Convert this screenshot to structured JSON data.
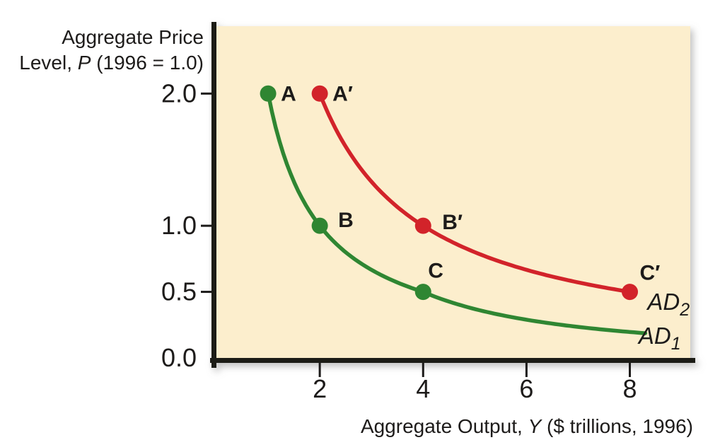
{
  "figure": {
    "background": "#ffffff",
    "plot_background": "#fceecd",
    "axis_color": "#1c1a19",
    "text_color": "#1d1b1a"
  },
  "chart_data": {
    "type": "line",
    "title": "",
    "xlabel": "Aggregate Output, Y ($ trillions, 1996)",
    "ylabel": "Aggregate Price Level, P (1996 = 1.0)",
    "xlabel_segments": [
      {
        "t": "Aggregate Output, "
      },
      {
        "t": "Y",
        "italic": true
      },
      {
        "t": " ($ trillions, 1996)"
      }
    ],
    "ylabel_lines": [
      [
        {
          "t": "Aggregate Price"
        }
      ],
      [
        {
          "t": "Level, "
        },
        {
          "t": "P",
          "italic": true
        },
        {
          "t": " (1996 = 1.0)"
        }
      ]
    ],
    "xlim": [
      0,
      9.17
    ],
    "ylim": [
      0,
      2.51
    ],
    "grid": false,
    "legend_position": "curve-end-labels",
    "x_ticks": [
      {
        "value": 2,
        "label": "2"
      },
      {
        "value": 4,
        "label": "4"
      },
      {
        "value": 6,
        "label": "6"
      },
      {
        "value": 8,
        "label": "8"
      }
    ],
    "y_ticks": [
      {
        "value": 2.0,
        "label": "2.0",
        "tick": true
      },
      {
        "value": 1.0,
        "label": "1.0",
        "tick": true
      },
      {
        "value": 0.5,
        "label": "0.5",
        "tick": true
      },
      {
        "value": 0.0,
        "label": "0.0",
        "tick": false
      }
    ],
    "series": [
      {
        "id": "ad1",
        "label_main": "AD",
        "label_sub": "1",
        "color": "#2f8632",
        "curve": "hyperbola",
        "k": 2,
        "x_start": 1.0,
        "x_end": 8.3,
        "tail": {
          "from_x": 4.0,
          "exponent": 1.35
        },
        "label_at": {
          "x": 8.17,
          "y": 0.107
        },
        "points": [
          {
            "label": "A",
            "x": 1.0,
            "y": 2.0
          },
          {
            "label": "B",
            "x": 2.0,
            "y": 1.0
          },
          {
            "label": "C",
            "x": 4.0,
            "y": 0.5
          }
        ]
      },
      {
        "id": "ad2",
        "label_main": "AD",
        "label_sub": "2",
        "color": "#d2232a",
        "curve": "hyperbola",
        "k": 4,
        "x_start": 2.0,
        "x_end": 8.0,
        "tail": null,
        "label_at": {
          "x": 8.34,
          "y": 0.364
        },
        "points": [
          {
            "label": "A′",
            "x": 2.0,
            "y": 2.0
          },
          {
            "label": "B′",
            "x": 4.0,
            "y": 1.0
          },
          {
            "label": "C′",
            "x": 8.0,
            "y": 0.5
          }
        ]
      }
    ],
    "point_label_offsets": {
      "A": [
        18,
        10
      ],
      "A′": [
        18,
        10
      ],
      "B": [
        26,
        2
      ],
      "B′": [
        27,
        5
      ],
      "C": [
        7,
        -20
      ],
      "C′": [
        14,
        -17
      ]
    }
  }
}
